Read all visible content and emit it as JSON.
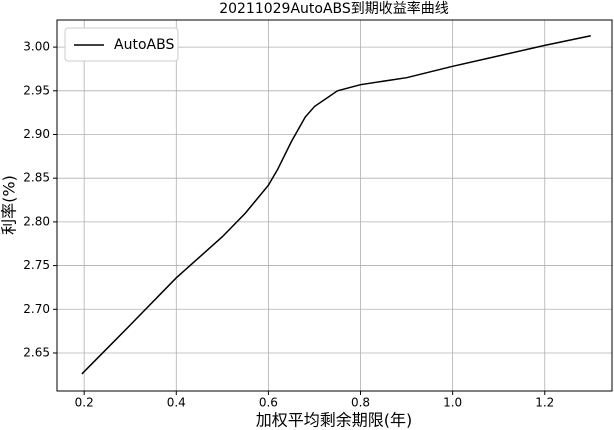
{
  "chart_data": {
    "type": "line",
    "title": "20211029AutoABS到期收益率曲线",
    "x_label": "加权平均剩余期限(年)",
    "y_label": "利率(%)",
    "x": [
      0.195,
      0.3,
      0.4,
      0.5,
      0.55,
      0.6,
      0.62,
      0.65,
      0.68,
      0.7,
      0.75,
      0.8,
      0.9,
      1.0,
      1.1,
      1.2,
      1.3
    ],
    "series": [
      {
        "name": "AutoABS",
        "color": "#000000",
        "values": [
          2.626,
          2.682,
          2.736,
          2.783,
          2.81,
          2.842,
          2.86,
          2.892,
          2.92,
          2.932,
          2.95,
          2.957,
          2.965,
          2.978,
          2.99,
          3.002,
          3.013
        ]
      }
    ],
    "xlim": [
      0.141,
      1.346
    ],
    "ylim": [
      2.6065,
      3.031
    ],
    "xticks": [
      0.2,
      0.4,
      0.6,
      0.8,
      {
        "value": 1.0,
        "label": "1.0"
      },
      1.2
    ],
    "yticks": [
      2.65,
      {
        "value": 2.7,
        "label": "2.70"
      },
      2.75,
      {
        "value": 2.8,
        "label": "2.80"
      },
      2.85,
      {
        "value": 2.9,
        "label": "2.90"
      },
      2.95,
      {
        "value": 3.0,
        "label": "3.00"
      }
    ],
    "grid": true,
    "legend": "upper-left"
  }
}
